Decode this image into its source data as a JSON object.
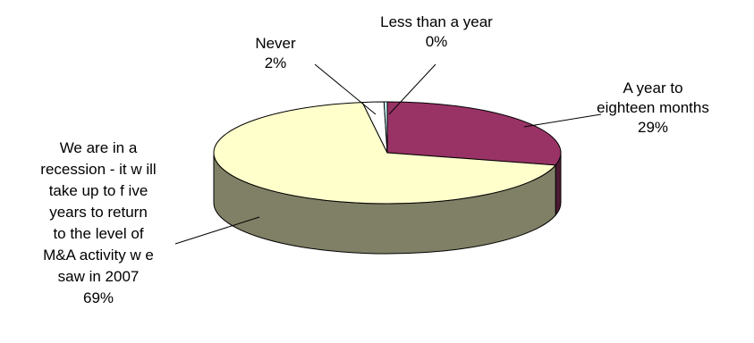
{
  "chart_data": {
    "type": "pie",
    "title": "",
    "three_d": true,
    "legend": "none",
    "slices": [
      {
        "label": "A year to eighteen months",
        "label_lines": [
          "A year to",
          "eighteen months"
        ],
        "value": 29,
        "value_label": "29%",
        "color": "#993366",
        "side_color": "#4d1a33"
      },
      {
        "label": "We are in a recession - it will take up to five years to return to the level of M&A activity we saw in 2007",
        "label_lines": [
          "We are in a",
          "recession - it w ill",
          "take up to f ive",
          "years to return",
          "to the level of",
          "M&A activity w e",
          "saw  in 2007"
        ],
        "value": 69,
        "value_label": "69%",
        "color": "#ffffcc",
        "side_color": "#808066"
      },
      {
        "label": "Never",
        "label_lines": [
          "Never"
        ],
        "value": 2,
        "value_label": "2%",
        "color": "#ffffff",
        "side_color": "#808080"
      },
      {
        "label": "Less than a year",
        "label_lines": [
          "Less than a year"
        ],
        "value": 0.3,
        "value_label": "0%",
        "color": "#ccffff",
        "side_color": "#668080"
      }
    ]
  }
}
